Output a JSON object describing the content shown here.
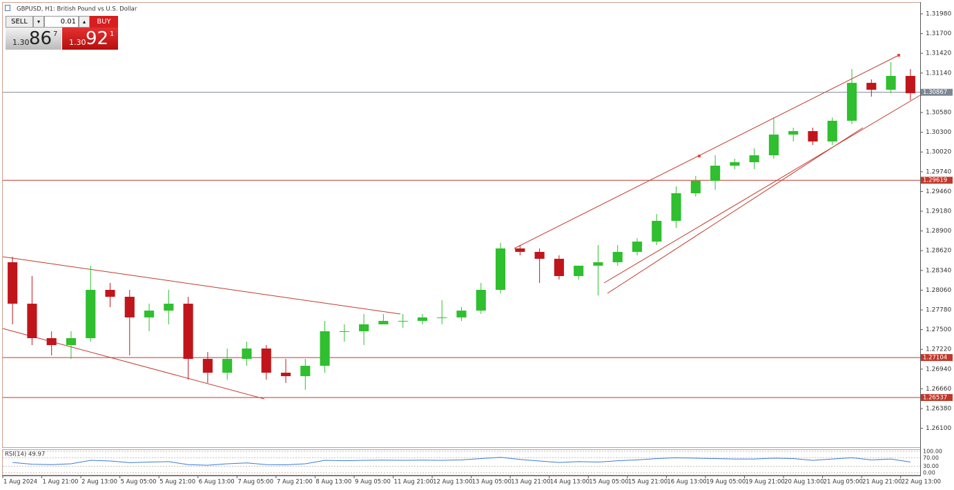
{
  "chart_data": {
    "type": "candlestick",
    "title": "GBPUSD, H1:  British Pound vs U.S. Dollar",
    "trade_panel": {
      "sell": "SELL",
      "lot": "0.01",
      "buy": "BUY",
      "bid": {
        "prefix": "1.30",
        "big": "86",
        "small": "7"
      },
      "ask": {
        "prefix": "1.30",
        "big": "92",
        "small": "1"
      }
    },
    "up_color": "#2fbf2f",
    "down_color": "#c0161b",
    "open": [
      1.28456,
      1.27868,
      1.27379,
      1.27281,
      1.27379,
      1.28064,
      1.27966,
      1.27673,
      1.2777,
      1.27868,
      1.27085,
      1.26889,
      1.27085,
      1.27232,
      1.26889,
      1.2684,
      1.26987,
      1.27477,
      1.27477,
      1.27575,
      1.27624,
      1.27624,
      1.27673,
      1.27673,
      1.2777,
      1.28064,
      1.28652,
      1.28603,
      1.28505,
      1.2826,
      1.28407,
      1.28456,
      1.28603,
      1.28749,
      1.29043,
      1.29435,
      1.29611,
      1.29826,
      1.29875,
      1.29973,
      1.30267,
      1.30316,
      1.30169,
      1.30463,
      1.31001,
      1.30903,
      1.31099
    ],
    "high": [
      1.28534,
      1.2826,
      1.27477,
      1.27477,
      1.28407,
      1.28162,
      1.28064,
      1.27868,
      1.28064,
      1.27966,
      1.27183,
      1.27232,
      1.2733,
      1.27281,
      1.27085,
      1.27085,
      1.27624,
      1.27575,
      1.27722,
      1.27722,
      1.27722,
      1.27722,
      1.27917,
      1.27819,
      1.28162,
      1.2873,
      1.28701,
      1.28652,
      1.28554,
      1.28407,
      1.28701,
      1.28701,
      1.28798,
      1.29141,
      1.29533,
      1.2968,
      1.29973,
      1.29924,
      1.30071,
      1.30512,
      1.30365,
      1.30365,
      1.30512,
      1.31197,
      1.3105,
      1.31295,
      1.31197
    ],
    "low": [
      1.27575,
      1.27281,
      1.27134,
      1.27085,
      1.2733,
      1.27819,
      1.27134,
      1.27477,
      1.27575,
      1.26791,
      1.26743,
      1.26791,
      1.26987,
      1.26791,
      1.26743,
      1.26645,
      1.26889,
      1.2733,
      1.27281,
      1.27575,
      1.27526,
      1.27575,
      1.27575,
      1.27624,
      1.27722,
      1.28015,
      1.28554,
      1.28162,
      1.28211,
      1.28211,
      1.27986,
      1.28407,
      1.28554,
      1.28701,
      1.28945,
      1.29386,
      1.29484,
      1.29777,
      1.29777,
      1.29924,
      1.30169,
      1.3012,
      1.3012,
      1.30414,
      1.30805,
      1.30854,
      1.30756
    ],
    "close": [
      1.27868,
      1.27379,
      1.27281,
      1.27379,
      1.28064,
      1.27966,
      1.27673,
      1.2777,
      1.27868,
      1.27085,
      1.26889,
      1.27085,
      1.27232,
      1.26889,
      1.2684,
      1.26987,
      1.27477,
      1.27477,
      1.27575,
      1.27624,
      1.27624,
      1.27673,
      1.27673,
      1.2777,
      1.28064,
      1.28652,
      1.28603,
      1.28505,
      1.2826,
      1.28407,
      1.28456,
      1.28603,
      1.28749,
      1.29043,
      1.29435,
      1.29611,
      1.29826,
      1.29875,
      1.29973,
      1.30267,
      1.30316,
      1.30169,
      1.30463,
      1.31001,
      1.30903,
      1.31099,
      1.30854
    ],
    "ylim": [
      1.25832,
      1.32137
    ],
    "yticks": [
      {
        "value": 1.3198,
        "label": "1.31980"
      },
      {
        "value": 1.317,
        "label": "1.31700"
      },
      {
        "value": 1.3142,
        "label": "1.31420"
      },
      {
        "value": 1.3114,
        "label": "1.31140"
      },
      {
        "value": 1.3058,
        "label": "1.30580"
      },
      {
        "value": 1.303,
        "label": "1.30300"
      },
      {
        "value": 1.3002,
        "label": "1.30020"
      },
      {
        "value": 1.2974,
        "label": "1.29740"
      },
      {
        "value": 1.2946,
        "label": "1.29460"
      },
      {
        "value": 1.2918,
        "label": "1.29180"
      },
      {
        "value": 1.289,
        "label": "1.28900"
      },
      {
        "value": 1.2862,
        "label": "1.28620"
      },
      {
        "value": 1.2834,
        "label": "1.28340"
      },
      {
        "value": 1.2806,
        "label": "1.28060"
      },
      {
        "value": 1.2778,
        "label": "1.27780"
      },
      {
        "value": 1.275,
        "label": "1.27500"
      },
      {
        "value": 1.2722,
        "label": "1.27220"
      },
      {
        "value": 1.2694,
        "label": "1.26940"
      },
      {
        "value": 1.2666,
        "label": "1.26660"
      },
      {
        "value": 1.2638,
        "label": "1.26380"
      },
      {
        "value": 1.261,
        "label": "1.26100"
      }
    ],
    "levels": [
      1.30867,
      1.29619,
      1.27104,
      1.26537
    ],
    "level_colors": [
      "#7d8794",
      "#c0392b",
      "#c0392b",
      "#c0392b"
    ],
    "x_labels": [
      "1 Aug 2024",
      "1 Aug 21:00",
      "2 Aug 13:00",
      "5 Aug 05:00",
      "5 Aug 21:00",
      "6 Aug 13:00",
      "7 Aug 05:00",
      "7 Aug 21:00",
      "8 Aug 13:00",
      "9 Aug 05:00",
      "11 Aug 21:00",
      "12 Aug 13:00",
      "13 Aug 05:00",
      "13 Aug 21:00",
      "14 Aug 13:00",
      "15 Aug 05:00",
      "15 Aug 21:00",
      "16 Aug 13:00",
      "19 Aug 05:00",
      "19 Aug 21:00",
      "20 Aug 13:00",
      "21 Aug 05:00",
      "21 Aug 21:00",
      "22 Aug 13:00"
    ],
    "rsi": {
      "label": "RSI(14) 49.97",
      "values": [
        48,
        40,
        38,
        42,
        58,
        55,
        47,
        50,
        52,
        38,
        35,
        42,
        46,
        38,
        37,
        42,
        58,
        56,
        58,
        59,
        58,
        59,
        58,
        60,
        66,
        72,
        62,
        55,
        48,
        52,
        50,
        56,
        60,
        66,
        70,
        68,
        66,
        64,
        64,
        68,
        66,
        58,
        64,
        70,
        60,
        64,
        49.97
      ],
      "ylim": [
        0,
        100
      ],
      "yticks": [
        {
          "value": 100,
          "label": "100.00"
        },
        {
          "value": 70,
          "label": "70.00"
        },
        {
          "value": 30,
          "label": "30.00"
        },
        {
          "value": 0,
          "label": "0.00"
        }
      ]
    }
  }
}
